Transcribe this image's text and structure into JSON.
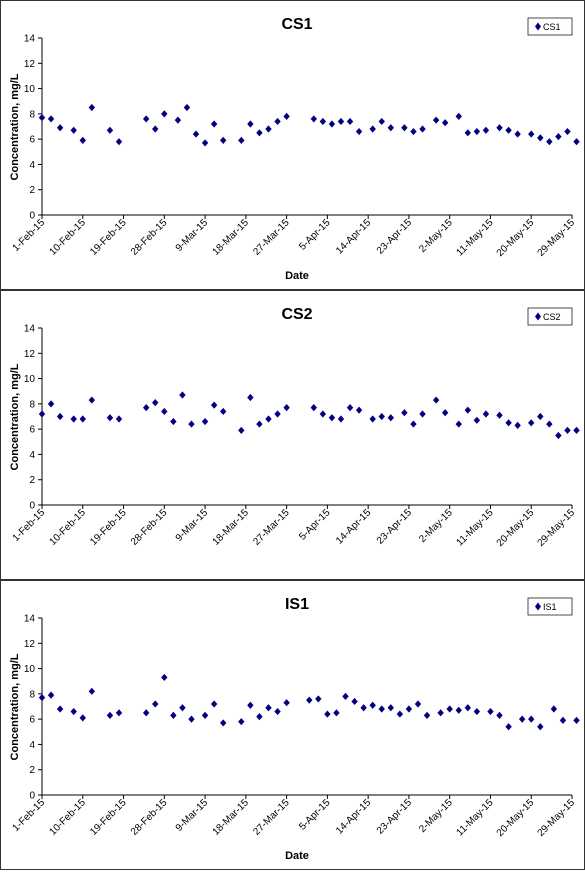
{
  "chart_data": [
    {
      "type": "scatter",
      "title": "CS1",
      "xlabel": "Date",
      "ylabel": "Concentration, mg/L",
      "ylim": [
        0,
        14
      ],
      "yticks": [
        0,
        2,
        4,
        6,
        8,
        10,
        12,
        14
      ],
      "xlim": [
        "1-Feb-15",
        "29-May-15"
      ],
      "xtick_labels": [
        "1-Feb-15",
        "10-Feb-15",
        "19-Feb-15",
        "28-Feb-15",
        "9-Mar-15",
        "18-Mar-15",
        "27-Mar-15",
        "5-Apr-15",
        "14-Apr-15",
        "23-Apr-15",
        "2-May-15",
        "11-May-15",
        "20-May-15",
        "29-May-15"
      ],
      "legend": "top-right",
      "grid": false,
      "marker_color": "#000080",
      "series": [
        {
          "name": "CS1",
          "x": [
            "1-Feb-15",
            "3-Feb-15",
            "5-Feb-15",
            "8-Feb-15",
            "10-Feb-15",
            "12-Feb-15",
            "16-Feb-15",
            "18-Feb-15",
            "24-Feb-15",
            "26-Feb-15",
            "28-Feb-15",
            "3-Mar-15",
            "5-Mar-15",
            "7-Mar-15",
            "9-Mar-15",
            "11-Mar-15",
            "13-Mar-15",
            "17-Mar-15",
            "19-Mar-15",
            "21-Mar-15",
            "23-Mar-15",
            "25-Mar-15",
            "27-Mar-15",
            "2-Apr-15",
            "4-Apr-15",
            "6-Apr-15",
            "8-Apr-15",
            "10-Apr-15",
            "12-Apr-15",
            "15-Apr-15",
            "17-Apr-15",
            "19-Apr-15",
            "22-Apr-15",
            "24-Apr-15",
            "26-Apr-15",
            "29-Apr-15",
            "1-May-15",
            "4-May-15",
            "6-May-15",
            "8-May-15",
            "10-May-15",
            "13-May-15",
            "15-May-15",
            "17-May-15",
            "20-May-15",
            "22-May-15",
            "24-May-15",
            "26-May-15",
            "28-May-15",
            "30-May-15"
          ],
          "y": [
            7.7,
            7.6,
            6.9,
            6.7,
            5.9,
            8.5,
            6.7,
            5.8,
            7.6,
            6.8,
            8.0,
            7.5,
            8.5,
            6.4,
            5.7,
            7.2,
            5.9,
            5.9,
            7.2,
            6.5,
            6.8,
            7.4,
            7.8,
            7.6,
            7.4,
            7.2,
            7.4,
            7.4,
            6.6,
            6.8,
            7.4,
            6.9,
            6.9,
            6.6,
            6.8,
            7.5,
            7.3,
            7.8,
            6.5,
            6.6,
            6.7,
            6.9,
            6.7,
            6.4,
            6.4,
            6.1,
            5.8,
            6.2,
            6.6,
            5.8
          ]
        }
      ]
    },
    {
      "type": "scatter",
      "title": "CS2",
      "xlabel": "Date",
      "ylabel": "Concentration, mg/L",
      "ylim": [
        0,
        14
      ],
      "yticks": [
        0,
        2,
        4,
        6,
        8,
        10,
        12,
        14
      ],
      "xlim": [
        "1-Feb-15",
        "29-May-15"
      ],
      "xtick_labels": [
        "1-Feb-15",
        "10-Feb-15",
        "19-Feb-15",
        "28-Feb-15",
        "9-Mar-15",
        "18-Mar-15",
        "27-Mar-15",
        "5-Apr-15",
        "14-Apr-15",
        "23-Apr-15",
        "2-May-15",
        "11-May-15",
        "20-May-15",
        "29-May-15"
      ],
      "legend": "top-right",
      "grid": false,
      "marker_color": "#000080",
      "series": [
        {
          "name": "CS2",
          "x": [
            "1-Feb-15",
            "3-Feb-15",
            "5-Feb-15",
            "8-Feb-15",
            "10-Feb-15",
            "12-Feb-15",
            "16-Feb-15",
            "18-Feb-15",
            "24-Feb-15",
            "26-Feb-15",
            "28-Feb-15",
            "2-Mar-15",
            "4-Mar-15",
            "6-Mar-15",
            "9-Mar-15",
            "11-Mar-15",
            "13-Mar-15",
            "17-Mar-15",
            "19-Mar-15",
            "21-Mar-15",
            "23-Mar-15",
            "25-Mar-15",
            "27-Mar-15",
            "2-Apr-15",
            "4-Apr-15",
            "6-Apr-15",
            "8-Apr-15",
            "10-Apr-15",
            "12-Apr-15",
            "15-Apr-15",
            "17-Apr-15",
            "19-Apr-15",
            "22-Apr-15",
            "24-Apr-15",
            "26-Apr-15",
            "29-Apr-15",
            "1-May-15",
            "4-May-15",
            "6-May-15",
            "8-May-15",
            "10-May-15",
            "13-May-15",
            "15-May-15",
            "17-May-15",
            "20-May-15",
            "22-May-15",
            "24-May-15",
            "26-May-15",
            "28-May-15",
            "30-May-15"
          ],
          "y": [
            7.2,
            8.0,
            7.0,
            6.8,
            6.8,
            8.3,
            6.9,
            6.8,
            7.7,
            8.1,
            7.4,
            6.6,
            8.7,
            6.4,
            6.6,
            7.9,
            7.4,
            5.9,
            8.5,
            6.4,
            6.8,
            7.2,
            7.7,
            7.7,
            7.2,
            6.9,
            6.8,
            7.7,
            7.5,
            6.8,
            7.0,
            6.9,
            7.3,
            6.4,
            7.2,
            8.3,
            7.3,
            6.4,
            7.5,
            6.7,
            7.2,
            7.1,
            6.5,
            6.3,
            6.5,
            7.0,
            6.4,
            5.5,
            5.9,
            5.9
          ]
        }
      ]
    },
    {
      "type": "scatter",
      "title": "IS1",
      "xlabel": "Date",
      "ylabel": "Concentration, mg/L",
      "ylim": [
        0,
        14
      ],
      "yticks": [
        0,
        2,
        4,
        6,
        8,
        10,
        12,
        14
      ],
      "xlim": [
        "1-Feb-15",
        "29-May-15"
      ],
      "xtick_labels": [
        "1-Feb-15",
        "10-Feb-15",
        "19-Feb-15",
        "28-Feb-15",
        "9-Mar-15",
        "18-Mar-15",
        "27-Mar-15",
        "5-Apr-15",
        "14-Apr-15",
        "23-Apr-15",
        "2-May-15",
        "11-May-15",
        "20-May-15",
        "29-May-15"
      ],
      "legend": "top-right",
      "grid": false,
      "marker_color": "#000080",
      "series": [
        {
          "name": "IS1",
          "x": [
            "1-Feb-15",
            "3-Feb-15",
            "5-Feb-15",
            "8-Feb-15",
            "10-Feb-15",
            "12-Feb-15",
            "16-Feb-15",
            "18-Feb-15",
            "24-Feb-15",
            "26-Feb-15",
            "28-Feb-15",
            "2-Mar-15",
            "4-Mar-15",
            "6-Mar-15",
            "9-Mar-15",
            "11-Mar-15",
            "13-Mar-15",
            "17-Mar-15",
            "19-Mar-15",
            "21-Mar-15",
            "23-Mar-15",
            "25-Mar-15",
            "27-Mar-15",
            "1-Apr-15",
            "3-Apr-15",
            "5-Apr-15",
            "7-Apr-15",
            "9-Apr-15",
            "11-Apr-15",
            "13-Apr-15",
            "15-Apr-15",
            "17-Apr-15",
            "19-Apr-15",
            "21-Apr-15",
            "23-Apr-15",
            "25-Apr-15",
            "27-Apr-15",
            "30-Apr-15",
            "2-May-15",
            "4-May-15",
            "6-May-15",
            "8-May-15",
            "11-May-15",
            "13-May-15",
            "15-May-15",
            "18-May-15",
            "20-May-15",
            "22-May-15",
            "25-May-15",
            "27-May-15",
            "30-May-15"
          ],
          "y": [
            7.7,
            7.9,
            6.8,
            6.6,
            6.1,
            8.2,
            6.3,
            6.5,
            6.5,
            7.2,
            9.3,
            6.3,
            6.9,
            6.0,
            6.3,
            7.2,
            5.7,
            5.8,
            7.1,
            6.2,
            6.9,
            6.6,
            7.3,
            7.5,
            7.6,
            6.4,
            6.5,
            7.8,
            7.4,
            6.9,
            7.1,
            6.8,
            6.9,
            6.4,
            6.8,
            7.2,
            6.3,
            6.5,
            6.8,
            6.7,
            6.9,
            6.6,
            6.6,
            6.3,
            5.4,
            6.0,
            6.0,
            5.4,
            6.8,
            5.9,
            5.9
          ]
        }
      ]
    }
  ]
}
